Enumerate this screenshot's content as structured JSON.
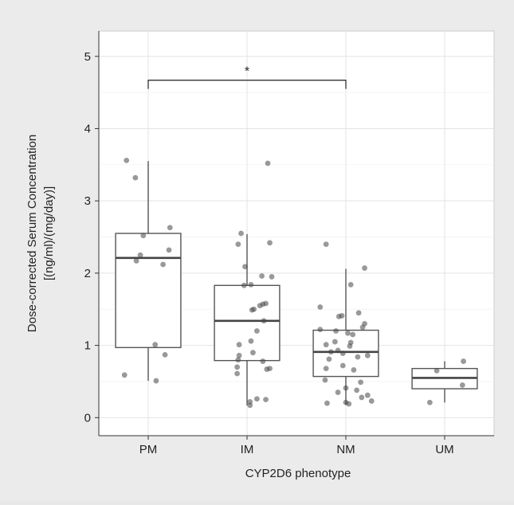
{
  "chart_data": {
    "type": "box",
    "xlabel": "CYP2D6 phenotype",
    "ylabel_line1": "Dose-corrected Serum Concentration",
    "ylabel_line2": "[(ng/ml)/(mg/day)]",
    "categories": [
      "PM",
      "IM",
      "NM",
      "UM"
    ],
    "ylim": [
      -0.25,
      5.35
    ],
    "yticks": [
      0,
      1,
      2,
      3,
      4,
      5
    ],
    "grid": true,
    "boxes": [
      {
        "category": "PM",
        "q1": 0.97,
        "median": 2.21,
        "q3": 2.55,
        "whisker_low": 0.51,
        "whisker_high": 3.55
      },
      {
        "category": "IM",
        "q1": 0.79,
        "median": 1.34,
        "q3": 1.83,
        "whisker_low": 0.17,
        "whisker_high": 2.54
      },
      {
        "category": "NM",
        "q1": 0.57,
        "median": 0.91,
        "q3": 1.21,
        "whisker_low": 0.18,
        "whisker_high": 2.06
      },
      {
        "category": "UM",
        "q1": 0.4,
        "median": 0.55,
        "q3": 0.68,
        "whisker_low": 0.21,
        "whisker_high": 0.78
      }
    ],
    "points": [
      {
        "category": "PM",
        "values": [
          3.56,
          3.32,
          2.63,
          2.52,
          2.32,
          2.25,
          2.17,
          2.12,
          1.01,
          0.87,
          0.59,
          0.51
        ],
        "jitter": [
          -0.22,
          -0.13,
          0.22,
          -0.05,
          0.21,
          -0.08,
          -0.12,
          0.15,
          0.07,
          0.17,
          -0.24,
          0.08
        ]
      },
      {
        "category": "IM",
        "values": [
          3.52,
          2.55,
          2.42,
          2.4,
          2.09,
          1.96,
          1.95,
          1.84,
          1.83,
          1.58,
          1.57,
          1.55,
          1.5,
          1.49,
          1.34,
          1.2,
          1.06,
          1.01,
          0.9,
          0.86,
          0.8,
          0.78,
          0.7,
          0.68,
          0.67,
          0.61,
          0.26,
          0.25,
          0.22,
          0.17
        ],
        "jitter": [
          0.21,
          -0.06,
          0.23,
          -0.09,
          -0.02,
          0.15,
          0.25,
          0.04,
          -0.03,
          0.19,
          0.16,
          0.13,
          0.07,
          0.05,
          0.17,
          0.1,
          0.04,
          -0.08,
          0.06,
          -0.08,
          -0.09,
          0.16,
          -0.1,
          0.23,
          0.2,
          -0.1,
          0.1,
          0.19,
          0.03,
          0.03
        ]
      },
      {
        "category": "NM",
        "values": [
          2.4,
          2.07,
          1.84,
          1.53,
          1.45,
          1.41,
          1.4,
          1.3,
          1.25,
          1.22,
          1.2,
          1.17,
          1.15,
          1.05,
          1.04,
          1.01,
          0.99,
          0.93,
          0.91,
          0.89,
          0.86,
          0.84,
          0.81,
          0.72,
          0.68,
          0.66,
          0.52,
          0.49,
          0.41,
          0.38,
          0.35,
          0.31,
          0.28,
          0.23,
          0.21,
          0.2,
          0.19
        ],
        "jitter": [
          -0.2,
          0.19,
          0.05,
          -0.26,
          0.13,
          -0.04,
          -0.07,
          0.19,
          0.17,
          -0.26,
          -0.1,
          0.02,
          0.07,
          -0.11,
          0.05,
          -0.2,
          0.04,
          -0.08,
          -0.15,
          -0.03,
          0.22,
          0.12,
          -0.17,
          -0.03,
          -0.2,
          0.08,
          -0.21,
          0.15,
          0.0,
          0.11,
          -0.08,
          0.22,
          0.16,
          0.26,
          0.0,
          -0.19,
          0.03
        ]
      },
      {
        "category": "UM",
        "values": [
          0.78,
          0.65,
          0.45,
          0.21
        ],
        "jitter": [
          0.19,
          -0.08,
          0.18,
          -0.15
        ]
      }
    ],
    "annotation": {
      "text": "*",
      "from": "PM",
      "to": "NM",
      "y": 4.67,
      "tip": 4.55
    }
  }
}
